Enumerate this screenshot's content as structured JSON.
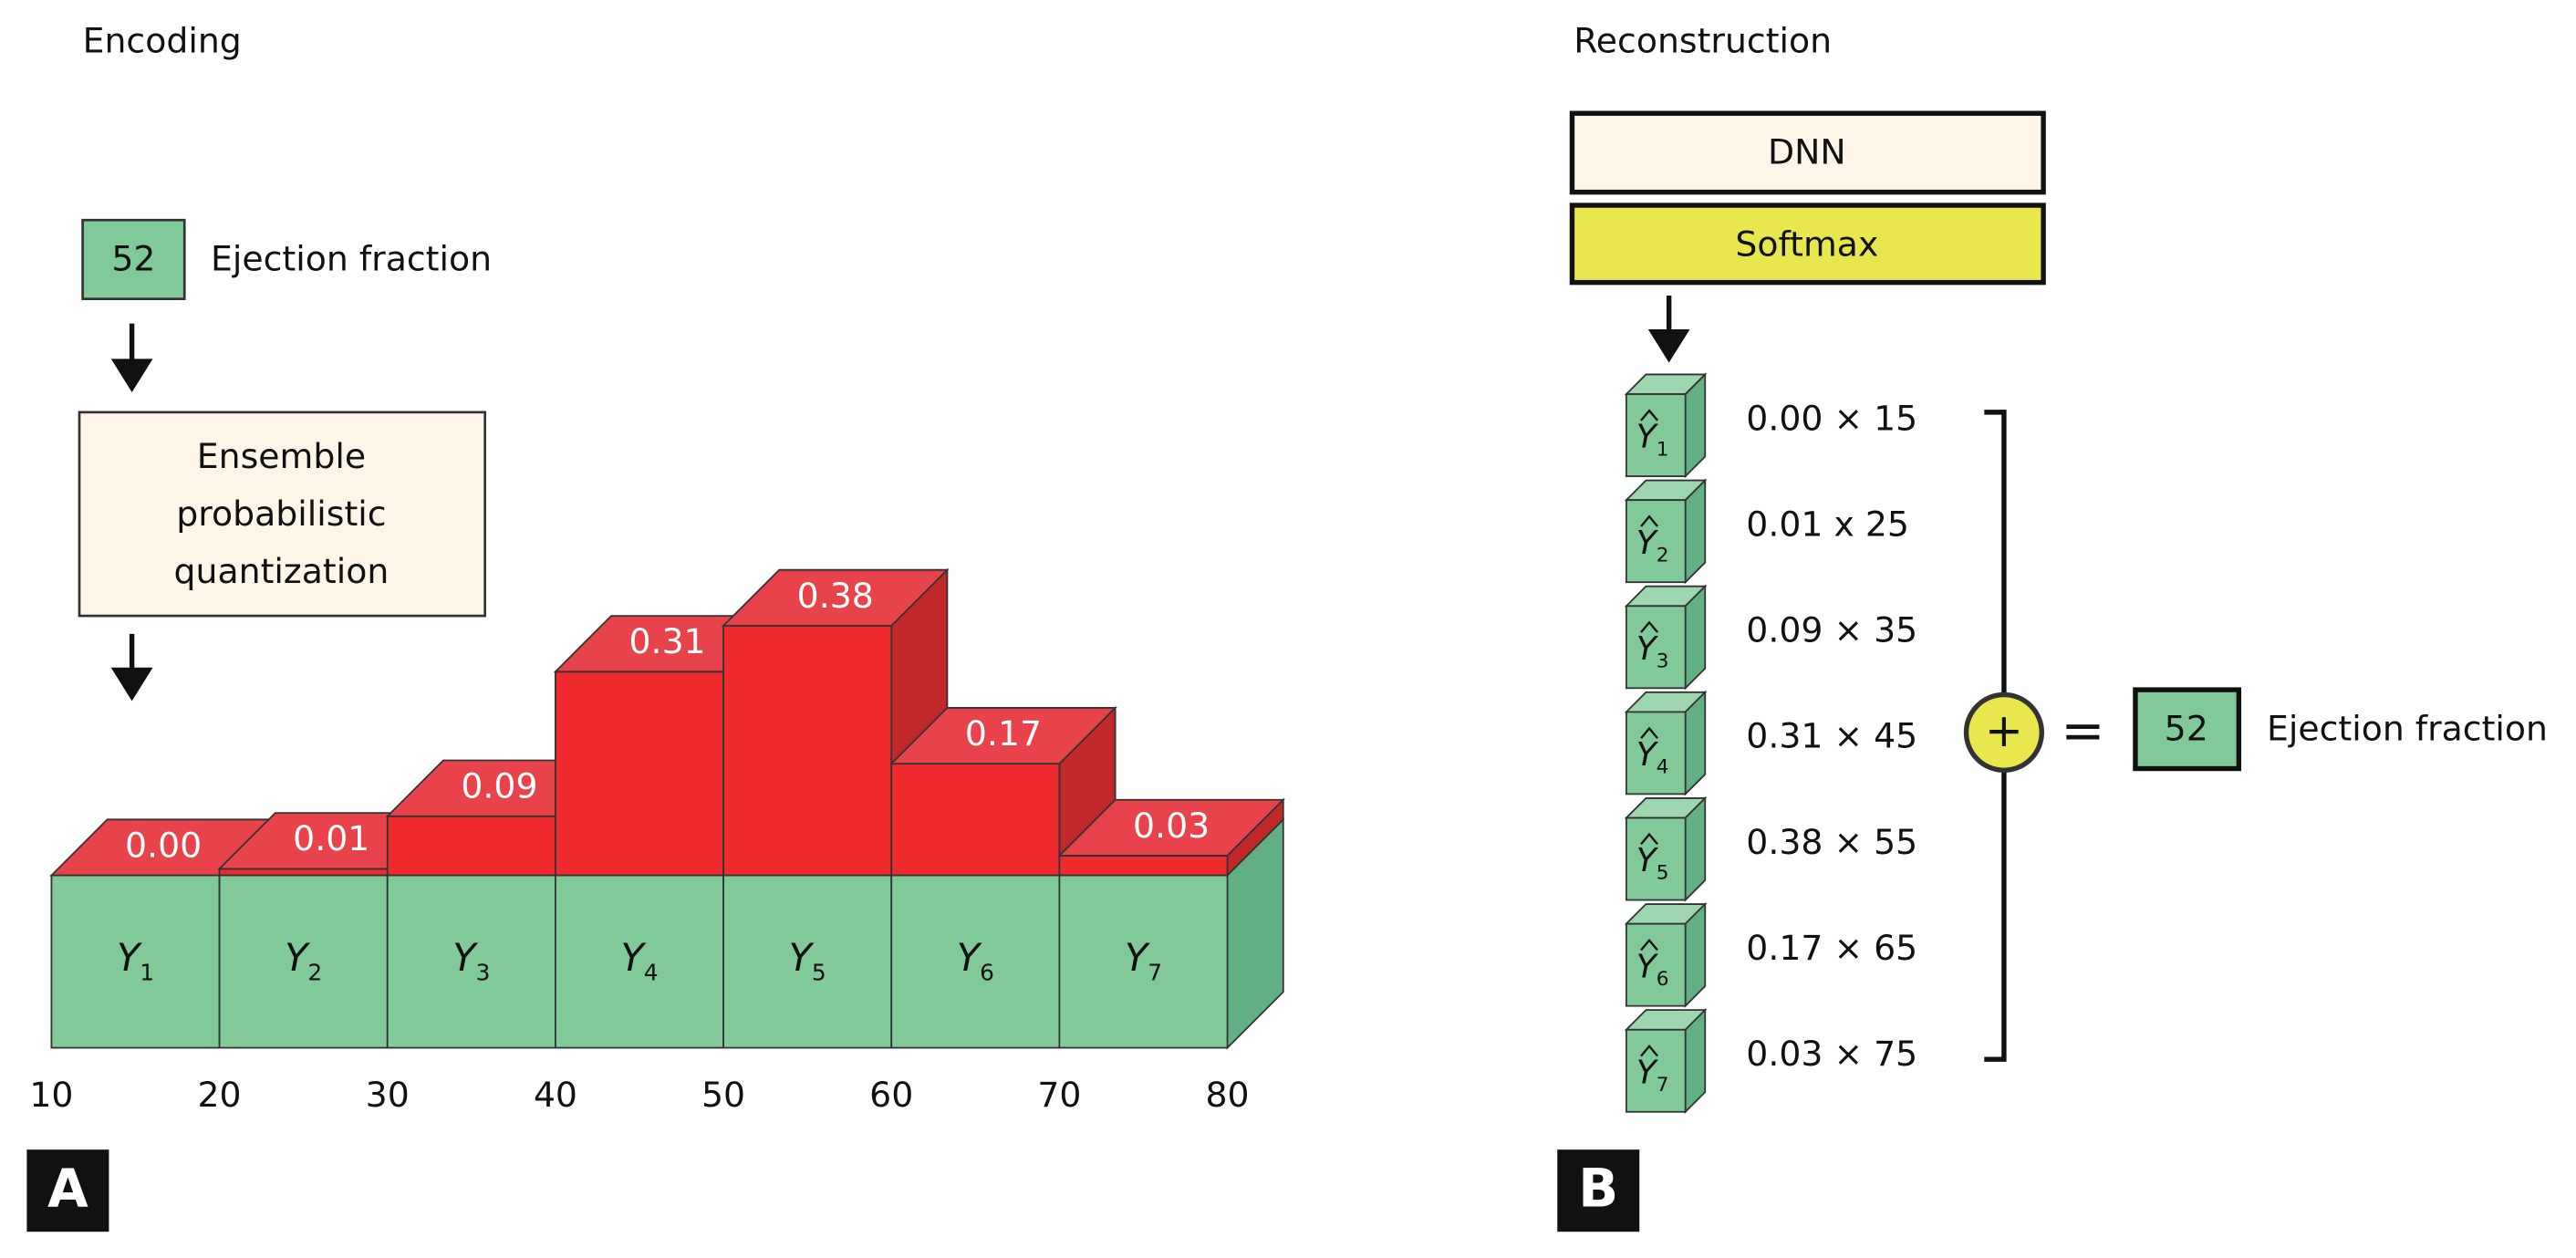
{
  "panel_a": {
    "badge": "A",
    "title": "Encoding",
    "input": {
      "value": "52",
      "label": "Ejection fraction"
    },
    "quantizer": [
      "Ensemble",
      "probabilistic",
      "quantization"
    ],
    "bins": [
      {
        "symbol": "Y",
        "index": "1",
        "probability": "0.00"
      },
      {
        "symbol": "Y",
        "index": "2",
        "probability": "0.01"
      },
      {
        "symbol": "Y",
        "index": "3",
        "probability": "0.09"
      },
      {
        "symbol": "Y",
        "index": "4",
        "probability": "0.31"
      },
      {
        "symbol": "Y",
        "index": "5",
        "probability": "0.38"
      },
      {
        "symbol": "Y",
        "index": "6",
        "probability": "0.17"
      },
      {
        "symbol": "Y",
        "index": "7",
        "probability": "0.03"
      }
    ],
    "edges": [
      "10",
      "20",
      "30",
      "40",
      "50",
      "60",
      "70",
      "80"
    ]
  },
  "panel_b": {
    "badge": "B",
    "title": "Reconstruction",
    "layers": [
      "DNN",
      "Softmax"
    ],
    "outputs": [
      {
        "symbol": "Y",
        "index": "1",
        "term": "0.00 × 15"
      },
      {
        "symbol": "Y",
        "index": "2",
        "term": "0.01 x 25"
      },
      {
        "symbol": "Y",
        "index": "3",
        "term": "0.09 × 35"
      },
      {
        "symbol": "Y",
        "index": "4",
        "term": "0.31 × 45"
      },
      {
        "symbol": "Y",
        "index": "5",
        "term": "0.38 × 55"
      },
      {
        "symbol": "Y",
        "index": "6",
        "term": "0.17 × 65"
      },
      {
        "symbol": "Y",
        "index": "7",
        "term": "0.03 × 75"
      }
    ],
    "operator": "+",
    "equals": "=",
    "output": {
      "value": "52",
      "label": "Ejection fraction"
    }
  }
}
